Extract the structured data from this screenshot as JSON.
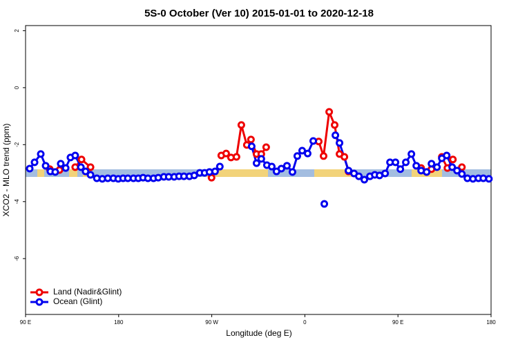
{
  "chart_data": {
    "type": "line",
    "title": "5S-0 October (Ver 10)   2015-01-01 to 2020-12-18",
    "x_label": "Longitude (deg E)",
    "y_label": "XCO2 - MLO trend (ppm)",
    "xlim": [
      90,
      540
    ],
    "xticks": [
      {
        "value": 90,
        "label": "90 E"
      },
      {
        "value": 180,
        "label": "180"
      },
      {
        "value": 270,
        "label": "90 W"
      },
      {
        "value": 360,
        "label": "0"
      },
      {
        "value": 450,
        "label": "90 E"
      },
      {
        "value": 540,
        "label": "180"
      }
    ],
    "ylim": [
      -7.96,
      2.18
    ],
    "yticks": [
      -6,
      -4,
      -2,
      0,
      2
    ],
    "legend": "bottomleft",
    "series": [
      {
        "name": "Land (Nadir&Glint)",
        "color": "#ee0000",
        "x": [
          113.4,
          122.8,
          null,
          138,
          144.1,
          152.8,
          null,
          269.8,
          null,
          279.2,
          283.9,
          288.6,
          293.9,
          298.6,
          303.9,
          307.9,
          313.3,
          317.9,
          322.6,
          null,
          373.4,
          378.1,
          383.5,
          388.8,
          393.5,
          398.2,
          402.2,
          null,
          472.4,
          477.7,
          482.4,
          null,
          492.4,
          497.8,
          503.1,
          null,
          511.8
        ],
        "values": [
          -2.86,
          -2.89,
          null,
          -2.79,
          -2.52,
          -2.79,
          null,
          -3.16,
          null,
          -2.38,
          -2.31,
          -2.45,
          -2.43,
          -1.31,
          -2.01,
          -1.82,
          -2.33,
          -2.33,
          -2.09,
          null,
          -1.89,
          -2.4,
          -0.85,
          -1.31,
          -2.33,
          -2.43,
          -2.94,
          null,
          -2.82,
          -2.96,
          -2.86,
          null,
          -2.43,
          -2.82,
          -2.52,
          null,
          -2.79
        ]
      },
      {
        "name": "Ocean (Glint)",
        "color": "#0000ee",
        "x": [
          94,
          98.7,
          104.7,
          109.4,
          114,
          118.7,
          124,
          128.8,
          133.4,
          138,
          143.5,
          148,
          152.8,
          158.9,
          164.2,
          169.5,
          174.9,
          179.6,
          184.3,
          188.9,
          194.3,
          199,
          203.6,
          208.3,
          213.7,
          218.3,
          223.7,
          228.4,
          233.7,
          238.4,
          243.1,
          248.4,
          253.1,
          258.4,
          263.1,
          267.8,
          273.2,
          277.8,
          null,
          308.6,
          313.3,
          317.9,
          323.3,
          328,
          332.6,
          337.3,
          342.7,
          348,
          352.7,
          357.4,
          362.7,
          368.1,
          null,
          378.8,
          null,
          389.5,
          393.5,
          402.2,
          407.5,
          412.2,
          417.5,
          422.9,
          427.6,
          432.2,
          437.6,
          442.3,
          447.6,
          452.3,
          457.6,
          463,
          467.7,
          472.4,
          477.7,
          482.4,
          487.7,
          492.4,
          497.1,
          502.4,
          507.1,
          511.8,
          517.1,
          522.5,
          527.8,
          532.5,
          537.9
        ],
        "values": [
          -2.84,
          -2.62,
          -2.33,
          -2.74,
          -2.94,
          -2.96,
          -2.67,
          -2.82,
          -2.45,
          -2.38,
          -2.79,
          -2.94,
          -3.06,
          -3.18,
          -3.2,
          -3.18,
          -3.18,
          -3.2,
          -3.18,
          -3.18,
          -3.18,
          -3.18,
          -3.16,
          -3.18,
          -3.18,
          -3.16,
          -3.13,
          -3.13,
          -3.13,
          -3.11,
          -3.11,
          -3.11,
          -3.08,
          -2.99,
          -2.99,
          -2.96,
          -2.94,
          -2.77,
          null,
          -2.06,
          -2.65,
          -2.5,
          -2.72,
          -2.77,
          -2.94,
          -2.84,
          -2.74,
          -2.96,
          -2.4,
          -2.21,
          -2.31,
          -1.87,
          null,
          -4.08,
          null,
          -1.67,
          -1.94,
          -2.91,
          -3.01,
          -3.11,
          -3.23,
          -3.11,
          -3.06,
          -3.08,
          -3.01,
          -2.62,
          -2.62,
          -2.86,
          -2.62,
          -2.33,
          -2.74,
          -2.91,
          -2.96,
          -2.67,
          -2.79,
          -2.48,
          -2.38,
          -2.79,
          -2.91,
          -3.03,
          -3.18,
          -3.2,
          -3.18,
          -3.18,
          -3.2
        ]
      }
    ]
  }
}
